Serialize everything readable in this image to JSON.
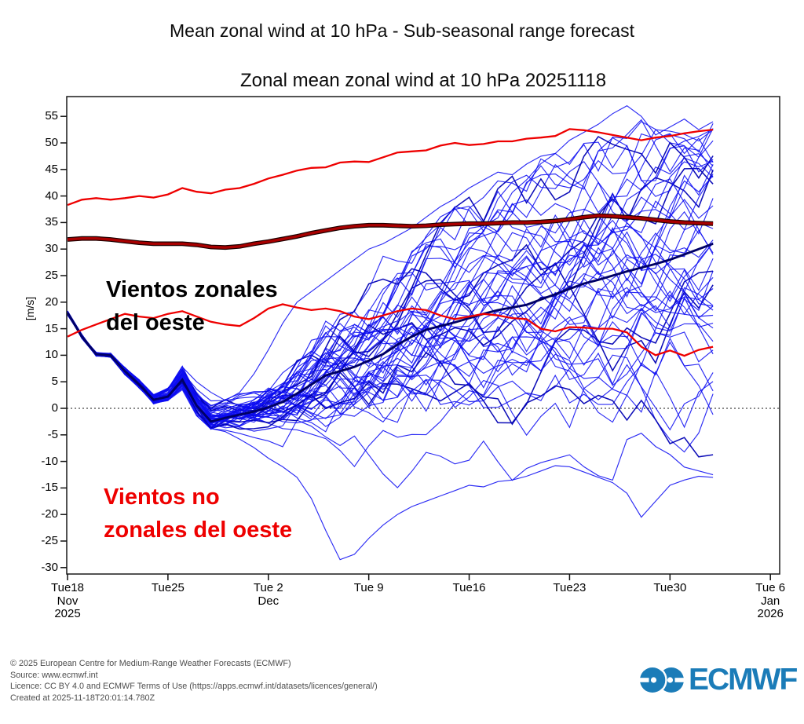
{
  "page": {
    "main_title": "Mean zonal wind at 10 hPa - Sub-seasonal range forecast"
  },
  "chart_data": {
    "type": "line",
    "title": "Zonal mean zonal wind at 10 hPa 20251118",
    "xlabel": "",
    "ylabel": "[m/s]",
    "ylim": [
      -31,
      58.5
    ],
    "x_range_days": [
      0,
      49.6
    ],
    "forecast_length_days": 45,
    "grid": "off",
    "zero_line": 0,
    "y_ticks": [
      55,
      50,
      45,
      40,
      35,
      30,
      25,
      20,
      15,
      10,
      5,
      0,
      -5,
      -10,
      -15,
      -20,
      -25,
      -30
    ],
    "x_ticks": [
      {
        "day": 0,
        "lines": [
          "Tue18",
          "Nov",
          "2025"
        ]
      },
      {
        "day": 7,
        "lines": [
          "Tue25"
        ]
      },
      {
        "day": 14,
        "lines": [
          "Tue 2",
          "Dec"
        ]
      },
      {
        "day": 21,
        "lines": [
          "Tue 9"
        ]
      },
      {
        "day": 28,
        "lines": [
          "Tue16"
        ]
      },
      {
        "day": 35,
        "lines": [
          "Tue23"
        ]
      },
      {
        "day": 42,
        "lines": [
          "Tue30"
        ]
      },
      {
        "day": 49,
        "lines": [
          "Tue 6",
          "Jan",
          "2026"
        ]
      }
    ],
    "series": [
      {
        "name": "highest_member",
        "color": "#0d0df2",
        "width": 1.15,
        "opacity": 0.87,
        "values": [
          18.0,
          13.6,
          10.4,
          10.2,
          7.5,
          5.2,
          2.4,
          3.6,
          7.8,
          5.0,
          3.0,
          1.5,
          3.0,
          6.5,
          11.0,
          16.0,
          20.0,
          22.0,
          24.0,
          26.0,
          28.0,
          30.0,
          31.0,
          32.5,
          34.0,
          36.0,
          38.0,
          39.5,
          41.5,
          43.0,
          44.5,
          44.0,
          46.0,
          47.5,
          48.0,
          50.5,
          52.0,
          53.5,
          55.5,
          57.0,
          55.0,
          51.5,
          53.0,
          54.5,
          52.5,
          54.0
        ]
      },
      {
        "name": "lowest_member",
        "color": "#0d0df2",
        "width": 1.15,
        "opacity": 0.87,
        "values": [
          18.0,
          13.4,
          10.0,
          9.8,
          6.5,
          3.9,
          0.9,
          1.5,
          3.5,
          -1.4,
          -3.8,
          -4.4,
          -5.8,
          -7.4,
          -9.4,
          -11.0,
          -13.0,
          -17.0,
          -23.0,
          -28.5,
          -27.5,
          -24.5,
          -22.0,
          -20.0,
          -18.5,
          -17.5,
          -16.5,
          -15.5,
          -14.5,
          -14.8,
          -13.8,
          -13.5,
          -12.8,
          -11.8,
          -10.8,
          -11.0,
          -12.0,
          -13.0,
          -14.0,
          -16.0,
          -20.5,
          -17.5,
          -14.5,
          -13.5,
          -12.8,
          -13.0
        ]
      },
      {
        "name": "ensemble_mean",
        "color": "#000066",
        "width": 2.9,
        "opacity": 1,
        "values": [
          18.0,
          13.5,
          10.2,
          10.0,
          7.0,
          4.5,
          1.6,
          2.2,
          5.4,
          0.5,
          -2.5,
          -1.8,
          -1.2,
          -0.6,
          0.2,
          1.2,
          2.8,
          4.5,
          6.2,
          7.0,
          7.8,
          9.0,
          10.2,
          12.0,
          13.5,
          14.8,
          15.5,
          16.2,
          17.0,
          17.8,
          18.5,
          19.0,
          19.5,
          20.5,
          21.5,
          22.5,
          23.5,
          24.2,
          25.0,
          25.8,
          26.5,
          27.2,
          28.0,
          29.0,
          30.0,
          31.0
        ]
      },
      {
        "name": "climate_lower",
        "color": "#ee0000",
        "width": 2.3,
        "opacity": 1,
        "values": [
          13.5,
          14.8,
          15.8,
          16.8,
          17.8,
          17.3,
          17.0,
          17.8,
          18.3,
          17.3,
          16.3,
          15.8,
          15.5,
          17.0,
          18.8,
          19.6,
          19.0,
          18.5,
          18.8,
          18.3,
          17.3,
          16.8,
          17.5,
          18.3,
          18.8,
          18.5,
          17.5,
          16.8,
          17.3,
          17.8,
          17.5,
          17.0,
          16.8,
          15.0,
          14.5,
          15.3,
          15.2,
          15.0,
          15.0,
          14.3,
          11.6,
          10.0,
          10.9,
          9.9,
          11.0,
          11.6
        ]
      },
      {
        "name": "climate_upper",
        "color": "#ee0000",
        "width": 2.3,
        "opacity": 1,
        "values": [
          38.3,
          39.3,
          39.6,
          39.3,
          39.6,
          40.0,
          39.7,
          40.3,
          41.5,
          40.8,
          40.5,
          41.2,
          41.5,
          42.3,
          43.3,
          44.0,
          44.8,
          45.3,
          45.4,
          46.3,
          46.5,
          46.4,
          47.3,
          48.2,
          48.4,
          48.6,
          49.5,
          50.0,
          49.6,
          49.8,
          50.3,
          50.3,
          50.8,
          51.0,
          51.3,
          52.6,
          52.4,
          52.0,
          51.5,
          51.0,
          50.5,
          51.0,
          51.3,
          51.8,
          52.2,
          52.5
        ]
      },
      {
        "name": "climate_mean",
        "color": "#a80000",
        "width": 3.4,
        "opacity": 1,
        "outline": "#1a0000",
        "values": [
          31.8,
          32.0,
          32.0,
          31.8,
          31.5,
          31.2,
          31.0,
          31.0,
          31.0,
          30.8,
          30.4,
          30.3,
          30.5,
          31.0,
          31.4,
          31.9,
          32.4,
          33.0,
          33.5,
          34.0,
          34.3,
          34.5,
          34.5,
          34.4,
          34.3,
          34.4,
          34.6,
          34.7,
          34.8,
          34.8,
          34.9,
          35.0,
          35.0,
          35.1,
          35.3,
          35.6,
          36.0,
          36.3,
          36.2,
          36.0,
          35.8,
          35.5,
          35.2,
          35.0,
          34.9,
          34.8
        ]
      }
    ],
    "ensemble": {
      "count": 49,
      "color": "#0d0df2",
      "dark_color": "#0000b4",
      "width": 1.15,
      "envelope_min": [
        17.6,
        13.1,
        9.8,
        9.6,
        6.3,
        3.8,
        0.8,
        1.4,
        3.4,
        -1.5,
        -4.0,
        -4.5,
        -6.0,
        -7.5,
        -9.5,
        -11.0,
        -13.0,
        -15.5,
        -18.0,
        -19.5,
        -20.0,
        -20.5,
        -20.0,
        -19.5,
        -19.0,
        -18.0,
        -17.0,
        -16.0,
        -15.0,
        -15.0,
        -14.0,
        -14.0,
        -13.0,
        -12.0,
        -11.0,
        -11.0,
        -12.0,
        -13.0,
        -14.0,
        -16.0,
        -18.0,
        -16.0,
        -14.5,
        -13.5,
        -13.0,
        -13.0
      ],
      "envelope_max": [
        18.4,
        13.9,
        10.6,
        10.4,
        7.7,
        5.4,
        2.6,
        3.8,
        8.0,
        6.5,
        3.0,
        2.0,
        3.0,
        5.0,
        10.0,
        13.0,
        16.0,
        19.0,
        21.0,
        24.0,
        26.0,
        28.0,
        29.5,
        31.0,
        33.0,
        35.0,
        36.5,
        38.0,
        40.0,
        42.0,
        43.5,
        45.0,
        46.0,
        47.0,
        48.5,
        50.0,
        51.0,
        52.0,
        53.0,
        54.5,
        55.5,
        54.0,
        53.0,
        52.5,
        53.0,
        54.0
      ]
    }
  },
  "annotations": {
    "westerly": {
      "line1": "Vientos zonales",
      "line2": "del oeste",
      "color": "#000000"
    },
    "non_westerly": {
      "line1": "Vientos no",
      "line2": "zonales del oeste",
      "color": "#ee0000"
    }
  },
  "footer": {
    "line1": "© 2025 European Centre for Medium-Range Weather Forecasts (ECMWF)",
    "line2": "Source: www.ecmwf.int",
    "line3": "Licence: CC BY 4.0 and ECMWF Terms of Use (https://apps.ecmwf.int/datasets/licences/general/)",
    "line4": "Created at 2025-11-18T20:01:14.780Z"
  },
  "logo": {
    "text": "ECMWF",
    "color": "#1b7cb8"
  }
}
